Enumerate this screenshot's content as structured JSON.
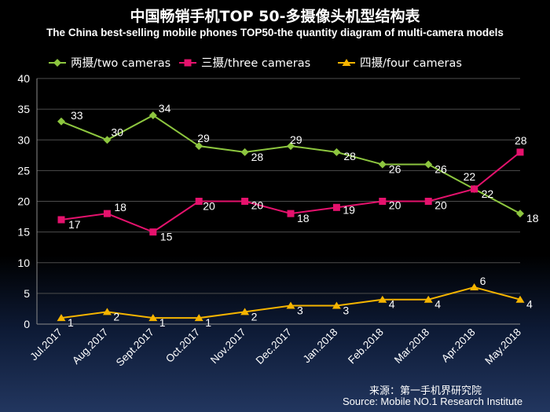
{
  "title": "中国畅销手机TOP 50-多摄像头机型结构表",
  "subtitle": "The China best-selling mobile phones TOP50-the quantity diagram of multi-camera models",
  "source_cn": "来源：第一手机界研究院",
  "source_en": "Source: Mobile NO.1 Research Institute",
  "chart_data": {
    "type": "line",
    "categories": [
      "Jul.2017",
      "Aug.2017",
      "Sept.2017",
      "Oct.2017",
      "Nov.2017",
      "Dec.2017",
      "Jan.2018",
      "Feb.2018",
      "Mar.2018",
      "Apr.2018",
      "May.2018"
    ],
    "series": [
      {
        "name": "两摄/two cameras",
        "color": "#8dc63f",
        "marker": "diamond",
        "values": [
          33,
          30,
          34,
          29,
          28,
          29,
          28,
          26,
          26,
          22,
          18
        ]
      },
      {
        "name": "三摄/three cameras",
        "color": "#e5126d",
        "marker": "square",
        "values": [
          17,
          18,
          15,
          20,
          20,
          18,
          19,
          20,
          20,
          22,
          28
        ]
      },
      {
        "name": "四摄/four cameras",
        "color": "#f5b400",
        "marker": "triangle",
        "values": [
          1,
          2,
          1,
          1,
          2,
          3,
          3,
          4,
          4,
          6,
          4
        ]
      }
    ],
    "ylim": [
      0,
      40
    ],
    "yticks": [
      0,
      5,
      10,
      15,
      20,
      25,
      30,
      35,
      40
    ],
    "grid": true,
    "legend": "top"
  }
}
